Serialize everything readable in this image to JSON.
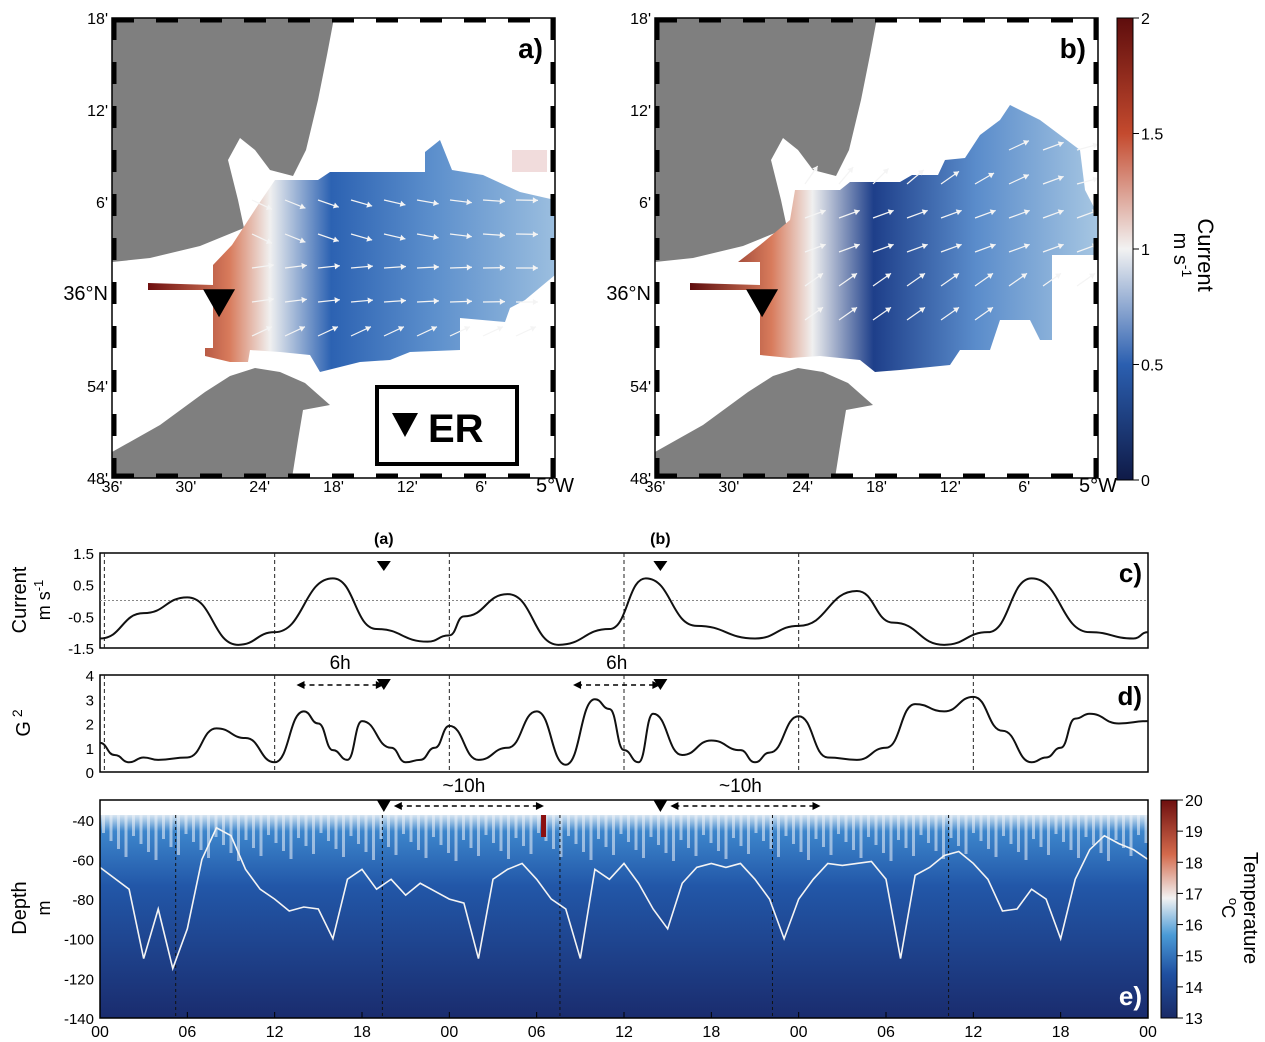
{
  "colors": {
    "land": "#7f7f7f",
    "deep": "#0f1a47",
    "current_low": "#0f1a47",
    "current_mid": "#f2f2f2",
    "current_high": "#5e0d0d"
  },
  "chart_data": [
    {
      "panel": "a)",
      "type": "heatmap",
      "lat_ticks": [
        "18'",
        "12'",
        "6'",
        "36°N",
        "54'",
        "48'"
      ],
      "lon_ticks": [
        "36'",
        "30'",
        "24'",
        "18'",
        "12'",
        "6'",
        "5°W"
      ],
      "marker_label": "ER",
      "station": {
        "lon": -5.455,
        "lat": 35.99
      }
    },
    {
      "panel": "b)",
      "type": "heatmap",
      "lat_ticks": [
        "18'",
        "12'",
        "6'",
        "36°N",
        "54'",
        "48'"
      ],
      "lon_ticks": [
        "36'",
        "30'",
        "24'",
        "18'",
        "12'",
        "6'",
        "5°W"
      ],
      "station": {
        "lon": -5.455,
        "lat": 35.99
      }
    },
    {
      "panel": "colorbar",
      "label": "Current",
      "unit": "m s",
      "unit_exp": "-1",
      "ticks": [
        "0",
        "0.5",
        "1",
        "1.5",
        "2"
      ],
      "range": [
        0,
        2
      ]
    },
    {
      "panel": "c)",
      "type": "line",
      "ylabel": "Current",
      "yunit": "m s",
      "yunit_exp": "-1",
      "ylim": [
        -1.5,
        1.5
      ],
      "yticks": [
        "1.5",
        "0.5",
        "-0.5",
        "-1.5"
      ],
      "marker_labels": [
        "(a)",
        "(b)"
      ],
      "markers_t": [
        19.5,
        38.5
      ],
      "series": [
        {
          "t": [
            0,
            3,
            6,
            9.5,
            12,
            16,
            19,
            22.5,
            24,
            25,
            28,
            31.5,
            35,
            37.5,
            41,
            45,
            48,
            52,
            54.5,
            58,
            61,
            64,
            68,
            71,
            72
          ],
          "v": [
            -1.2,
            -0.4,
            0.1,
            -1.4,
            -1.0,
            0.7,
            -0.9,
            -1.3,
            -1.1,
            -0.5,
            0.2,
            -1.4,
            -0.9,
            0.7,
            -0.8,
            -1.2,
            -0.8,
            0.3,
            -0.7,
            -1.4,
            -1.0,
            0.7,
            -1.0,
            -1.2,
            -1.0
          ]
        }
      ]
    },
    {
      "panel": "d)",
      "type": "line",
      "ylabel": "G",
      "ylabel_exp": "2",
      "ylim": [
        0,
        4
      ],
      "yticks": [
        "4",
        "3",
        "2",
        "1",
        "0"
      ],
      "intervals": [
        {
          "label": "6h",
          "t0": 13.5,
          "t1": 19.5
        },
        {
          "label": "6h",
          "t0": 32.5,
          "t1": 38.5
        }
      ],
      "series": [
        {
          "t": [
            0,
            1,
            2,
            3,
            4,
            6,
            8,
            10,
            12,
            14,
            15,
            16,
            17,
            18,
            20,
            21,
            22,
            23,
            24,
            26,
            28,
            30,
            32,
            34,
            35,
            36,
            37,
            38,
            40,
            42,
            44,
            45,
            46,
            48,
            50,
            52,
            54,
            56,
            58,
            60,
            62,
            64,
            65,
            66,
            67,
            68,
            70,
            72
          ],
          "v": [
            1.2,
            0.7,
            0.4,
            0.6,
            0.5,
            0.6,
            1.8,
            1.4,
            0.4,
            2.5,
            2.0,
            0.9,
            0.5,
            2.1,
            1.0,
            0.4,
            0.5,
            1.0,
            1.9,
            0.5,
            1.0,
            2.5,
            0.3,
            3.0,
            2.6,
            0.9,
            0.4,
            2.4,
            0.7,
            1.3,
            0.9,
            0.4,
            0.8,
            2.3,
            0.6,
            0.5,
            1.0,
            2.8,
            2.5,
            3.1,
            1.7,
            0.4,
            0.6,
            1.0,
            2.2,
            2.4,
            2.0,
            2.1
          ]
        }
      ]
    },
    {
      "panel": "e)",
      "type": "heatmap",
      "ylabel": "Depth",
      "yunit": "m",
      "ylim": [
        -140,
        -30
      ],
      "yticks": [
        "-40",
        "-60",
        "-80",
        "-100",
        "-120",
        "-140"
      ],
      "xticks": [
        "00",
        "06",
        "12",
        "18",
        "00",
        "06",
        "12",
        "18",
        "00",
        "06",
        "12",
        "18",
        "00"
      ],
      "intervals": [
        {
          "label": "~10h",
          "t0": 19.5,
          "t1": 30.5
        },
        {
          "label": "~10h",
          "t0": 38.5,
          "t1": 49.5
        }
      ],
      "colorbar": {
        "label": "Temperature",
        "unit": "C",
        "unit_prefix": "o",
        "ticks": [
          "20",
          "19",
          "18",
          "17",
          "16",
          "15",
          "14",
          "13"
        ],
        "range": [
          13,
          20
        ]
      },
      "series": [
        {
          "name": "isotherm",
          "t": [
            0,
            2,
            3,
            4,
            5,
            6,
            7,
            8,
            9,
            10,
            11,
            12,
            13,
            14,
            15,
            16,
            17,
            18,
            19,
            20,
            21,
            22,
            23,
            24,
            25,
            26,
            27,
            28,
            29,
            30,
            31,
            32,
            33,
            34,
            35,
            36,
            37,
            38,
            39,
            40,
            41,
            42,
            43,
            44,
            45,
            46,
            47,
            48,
            49,
            50,
            51,
            52,
            53,
            54,
            55,
            56,
            57,
            58,
            59,
            60,
            61,
            62,
            63,
            64,
            65,
            66,
            67,
            68,
            69,
            70,
            71,
            72
          ],
          "v": [
            -64,
            -75,
            -110,
            -85,
            -115,
            -95,
            -60,
            -44,
            -48,
            -65,
            -75,
            -80,
            -86,
            -84,
            -85,
            -100,
            -70,
            -65,
            -75,
            -70,
            -78,
            -72,
            -76,
            -80,
            -82,
            -110,
            -70,
            -65,
            -62,
            -70,
            -80,
            -85,
            -110,
            -65,
            -70,
            -62,
            -72,
            -85,
            -95,
            -72,
            -64,
            -62,
            -64,
            -62,
            -70,
            -80,
            -100,
            -80,
            -70,
            -62,
            -63,
            -62,
            -61,
            -70,
            -110,
            -68,
            -64,
            -58,
            -56,
            -62,
            -70,
            -86,
            -85,
            -75,
            -80,
            -100,
            -70,
            -55,
            -48,
            -52,
            -55,
            -60
          ]
        }
      ]
    }
  ]
}
